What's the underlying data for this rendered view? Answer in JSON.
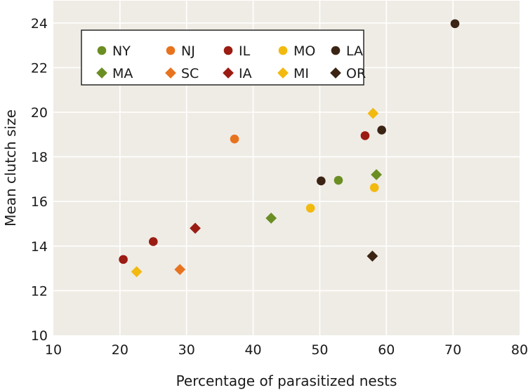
{
  "chart_data": {
    "type": "scatter",
    "xlabel": "Percentage of parasitized nests",
    "ylabel": "Mean clutch size",
    "xlim": [
      10,
      80
    ],
    "ylim": [
      10,
      25
    ],
    "xticks": [
      10,
      20,
      30,
      40,
      50,
      60,
      70,
      80
    ],
    "yticks": [
      10,
      12,
      14,
      16,
      18,
      20,
      22,
      24
    ],
    "grid": true,
    "plot_background": "#efece5",
    "gridline_color": "#ffffff",
    "legend": {
      "placement": "top-left",
      "ncol": 5
    },
    "series": [
      {
        "name": "NY",
        "marker": "circle",
        "color": "#6b8e23",
        "points": [
          [
            52.8,
            16.95
          ]
        ]
      },
      {
        "name": "NJ",
        "marker": "circle",
        "color": "#e8731f",
        "points": [
          [
            37.2,
            18.8
          ]
        ]
      },
      {
        "name": "IL",
        "marker": "circle",
        "color": "#9b1c13",
        "points": [
          [
            20.5,
            13.4
          ],
          [
            25.0,
            14.2
          ],
          [
            56.8,
            18.95
          ]
        ]
      },
      {
        "name": "MO",
        "marker": "circle",
        "color": "#f2b90f",
        "points": [
          [
            48.6,
            15.7
          ],
          [
            58.2,
            16.62
          ]
        ]
      },
      {
        "name": "LA",
        "marker": "circle",
        "color": "#3b2414",
        "points": [
          [
            50.2,
            16.92
          ],
          [
            59.3,
            19.2
          ],
          [
            70.3,
            23.97
          ]
        ]
      },
      {
        "name": "MA",
        "marker": "diamond",
        "color": "#6b8e23",
        "points": [
          [
            42.7,
            15.25
          ],
          [
            58.5,
            17.2
          ]
        ]
      },
      {
        "name": "SC",
        "marker": "diamond",
        "color": "#e8731f",
        "points": [
          [
            29.0,
            12.95
          ]
        ]
      },
      {
        "name": "IA",
        "marker": "diamond",
        "color": "#9b1c13",
        "points": [
          [
            31.3,
            14.8
          ]
        ]
      },
      {
        "name": "MI",
        "marker": "diamond",
        "color": "#f2b90f",
        "points": [
          [
            22.5,
            12.85
          ],
          [
            58.0,
            19.95
          ]
        ]
      },
      {
        "name": "OR",
        "marker": "diamond",
        "color": "#3b2414",
        "points": [
          [
            57.9,
            13.55
          ]
        ]
      }
    ]
  }
}
